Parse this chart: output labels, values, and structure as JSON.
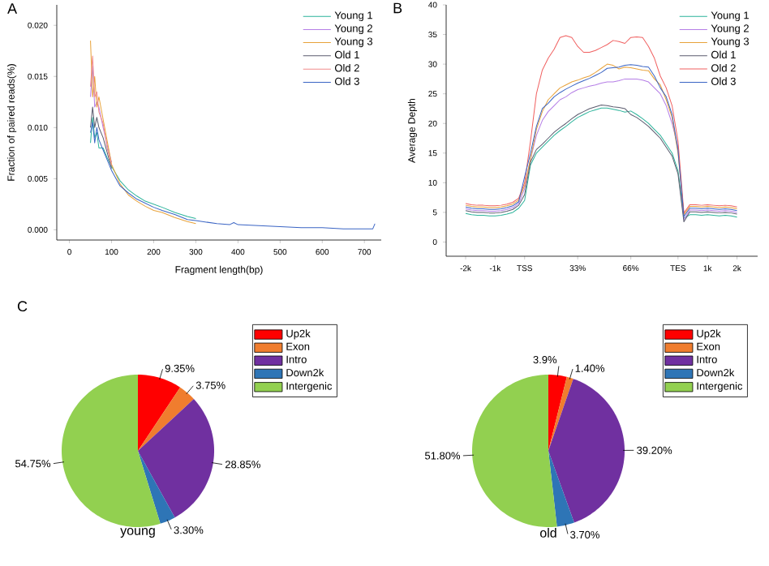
{
  "chart_data": [
    {
      "type": "line",
      "annotations": [
        "A"
      ],
      "xlabel": "Fragment length(bp)",
      "ylabel": "Fraction of paired reads(%)",
      "xlim": [
        -30,
        740
      ],
      "ylim": [
        -0.001,
        0.022
      ],
      "xticks": [
        0,
        100,
        200,
        300,
        400,
        500,
        600,
        700
      ],
      "yticks": [
        {
          "value": 0,
          "label": "0.000"
        },
        {
          "value": 0.005,
          "label": "0.005"
        },
        {
          "value": 0.01,
          "label": "0.010"
        },
        {
          "value": 0.015,
          "label": "0.015"
        },
        {
          "value": 0.02,
          "label": "0.020"
        }
      ],
      "legend": "top right",
      "x": [
        50,
        55,
        60,
        65,
        70,
        80,
        90,
        100,
        120,
        140,
        160,
        180,
        200,
        220,
        250,
        280,
        300,
        350,
        380,
        390,
        400,
        450,
        500,
        550,
        600,
        650,
        700,
        720,
        725
      ],
      "series": [
        {
          "name": "Young 1",
          "color": "#2bb39a",
          "values": [
            0.0085,
            0.011,
            0.009,
            0.0095,
            0.008,
            0.008,
            0.007,
            0.0062,
            0.0048,
            0.0039,
            0.0033,
            0.0028,
            0.0025,
            0.0022,
            0.0017,
            0.0013,
            0.0011,
            null,
            null,
            null,
            null,
            null,
            null,
            null,
            null,
            null,
            null,
            null,
            null
          ]
        },
        {
          "name": "Young 2",
          "color": "#b57ee6",
          "values": [
            0.013,
            0.016,
            0.012,
            0.0125,
            0.012,
            0.01,
            0.0082,
            0.0066,
            null,
            null,
            null,
            null,
            null,
            null,
            null,
            null,
            null,
            null,
            null,
            null,
            null,
            null,
            null,
            null,
            null,
            null,
            null,
            null,
            null
          ]
        },
        {
          "name": "Young 3",
          "color": "#e8a23a",
          "values": [
            0.0185,
            0.013,
            0.015,
            0.012,
            0.013,
            0.0108,
            0.0086,
            0.0064,
            0.0045,
            0.0034,
            0.0028,
            0.0023,
            0.0019,
            0.0017,
            0.0012,
            0.0008,
            0.0006,
            null,
            null,
            null,
            null,
            null,
            null,
            null,
            null,
            null,
            null,
            null,
            null
          ]
        },
        {
          "name": "Old 1",
          "color": "#5b5b6e",
          "values": [
            0.01,
            0.012,
            0.01,
            0.011,
            0.01,
            0.009,
            0.0075,
            0.006,
            null,
            null,
            null,
            null,
            null,
            null,
            null,
            null,
            null,
            null,
            null,
            null,
            null,
            null,
            null,
            null,
            null,
            null,
            null,
            null,
            null
          ]
        },
        {
          "name": "Old 2",
          "color": "#f08a8a",
          "values": [
            0.014,
            0.017,
            0.013,
            0.0135,
            0.0115,
            0.0104,
            0.0079,
            0.0063,
            null,
            null,
            null,
            null,
            null,
            null,
            null,
            null,
            null,
            null,
            null,
            null,
            null,
            null,
            null,
            null,
            null,
            null,
            null,
            null,
            null
          ]
        },
        {
          "name": "Old 3",
          "color": "#3a64c4",
          "values": [
            0.0095,
            0.0105,
            0.0085,
            0.01,
            0.0088,
            0.0078,
            0.0068,
            0.0058,
            0.0043,
            0.0036,
            0.003,
            0.0026,
            0.0022,
            0.0019,
            0.0015,
            0.001,
            0.0009,
            0.0006,
            0.0005,
            0.0007,
            0.0005,
            0.0004,
            0.0003,
            0.0002,
            0.0002,
            0.0001,
            0.0001,
            0.0001,
            0.0006
          ]
        }
      ]
    },
    {
      "type": "line",
      "annotations": [
        "B"
      ],
      "ylabel": "Average Depth",
      "ylim": [
        -2.4,
        40
      ],
      "categories": [
        "-2k",
        null,
        null,
        null,
        null,
        "-1k",
        null,
        null,
        null,
        null,
        "TSS",
        null,
        null,
        null,
        null,
        null,
        null,
        null,
        null,
        "33%",
        null,
        null,
        null,
        null,
        null,
        null,
        null,
        null,
        "66%",
        null,
        null,
        null,
        null,
        null,
        null,
        null,
        "TES",
        null,
        null,
        null,
        null,
        "1k",
        null,
        null,
        null,
        null,
        "2k"
      ],
      "yticks": [
        0,
        5,
        10,
        15,
        20,
        25,
        30,
        35,
        40
      ],
      "legend": "top right",
      "series": [
        {
          "name": "Young 1",
          "color": "#2bb39a",
          "values": [
            4.8,
            4.6,
            4.5,
            4.5,
            4.4,
            4.4,
            4.5,
            4.7,
            5.0,
            5.7,
            7,
            13,
            15,
            16,
            17,
            18,
            18.8,
            19.5,
            20.3,
            21,
            21.5,
            22,
            22.3,
            22.6,
            22.6,
            22.4,
            22.2,
            21.9,
            22.1,
            21.5,
            20.8,
            20,
            19,
            18,
            16.5,
            15,
            12,
            4.0,
            4.6,
            4.6,
            4.5,
            4.6,
            4.5,
            4.4,
            4.5,
            4.4,
            4.2
          ]
        },
        {
          "name": "Young 2",
          "color": "#b57ee6",
          "values": [
            5.6,
            5.4,
            5.3,
            5.3,
            5.2,
            5.2,
            5.3,
            5.5,
            5.8,
            6.5,
            9,
            14,
            18,
            20.5,
            22,
            23,
            24,
            24.5,
            25.2,
            25.7,
            26,
            26.3,
            26.5,
            26.8,
            27,
            27,
            27.2,
            27.5,
            27.5,
            27.5,
            27.3,
            27,
            26,
            25,
            23,
            20,
            16,
            3.8,
            5.4,
            5.4,
            5.3,
            5.4,
            5.3,
            5.2,
            5.3,
            5.2,
            5.0
          ]
        },
        {
          "name": "Young 3",
          "color": "#e8a23a",
          "values": [
            6.2,
            6.0,
            5.9,
            5.9,
            5.8,
            5.8,
            5.9,
            6.1,
            6.4,
            7.1,
            9.5,
            14,
            19,
            22,
            24,
            25,
            26,
            26.5,
            27,
            27.3,
            27.7,
            28,
            28.6,
            29.3,
            30,
            29.8,
            29.2,
            29.5,
            29.4,
            29.2,
            29,
            28.9,
            27.5,
            26.5,
            24,
            21,
            15,
            4.6,
            6.0,
            6.0,
            5.9,
            6.0,
            5.9,
            5.8,
            5.9,
            5.8,
            5.6
          ]
        },
        {
          "name": "Old 1",
          "color": "#5b5b6e",
          "values": [
            5.3,
            5.1,
            5.0,
            5.0,
            4.9,
            4.9,
            5.0,
            5.2,
            5.5,
            6.2,
            8,
            13.5,
            15.6,
            16.5,
            17.5,
            18.5,
            19.3,
            20,
            20.8,
            21.5,
            22,
            22.5,
            22.8,
            23.1,
            23,
            22.8,
            22.7,
            22.5,
            21.5,
            21,
            20.3,
            19.5,
            18.5,
            17.5,
            16,
            14.5,
            11.5,
            3.4,
            5.1,
            5.1,
            5.0,
            5.1,
            5.0,
            4.9,
            5.0,
            4.9,
            4.7
          ]
        },
        {
          "name": "Old 2",
          "color": "#f06060",
          "values": [
            6.5,
            6.3,
            6.2,
            6.2,
            6.1,
            6.1,
            6.2,
            6.4,
            6.7,
            7.4,
            10,
            17,
            25,
            29,
            31,
            32.5,
            34.5,
            34.8,
            34.5,
            33,
            32,
            32,
            32.3,
            32.8,
            33.3,
            34,
            33.8,
            33.5,
            34.5,
            34.6,
            34.5,
            33,
            31,
            28,
            26,
            23,
            17,
            4.9,
            6.3,
            6.3,
            6.2,
            6.3,
            6.2,
            6.1,
            6.2,
            6.1,
            5.9
          ]
        },
        {
          "name": "Old 3",
          "color": "#3a64c4",
          "values": [
            5.9,
            5.7,
            5.6,
            5.6,
            5.5,
            5.5,
            5.6,
            5.8,
            6.1,
            6.8,
            11,
            15,
            19.5,
            22.5,
            23.4,
            24.5,
            25.2,
            25.8,
            26.3,
            26.8,
            27.2,
            27.6,
            28.1,
            28.6,
            29.3,
            29.4,
            29.5,
            29.8,
            29.9,
            29.8,
            29.6,
            29.5,
            28,
            26,
            24.5,
            21.5,
            15.5,
            4.3,
            5.7,
            5.7,
            5.6,
            5.7,
            5.6,
            5.5,
            5.6,
            5.5,
            5.3
          ]
        }
      ]
    },
    {
      "type": "pie",
      "annotations": [
        "C"
      ],
      "title": "young",
      "legend": "right",
      "categories": [
        "Up2k",
        "Exon",
        "Intro",
        "Down2k",
        "Intergenic"
      ],
      "values": [
        9.35,
        3.75,
        28.85,
        3.3,
        54.75
      ],
      "value_labels": [
        "9.35%",
        "3.75%",
        "28.85%",
        "3.30%",
        "54.75%"
      ],
      "colors": [
        "#ff0000",
        "#f07d2e",
        "#7030a0",
        "#2e75b6",
        "#92d050"
      ]
    },
    {
      "type": "pie",
      "title": "old",
      "legend": "right",
      "categories": [
        "Up2k",
        "Exon",
        "Intro",
        "Down2k",
        "Intergenic"
      ],
      "values": [
        3.9,
        1.4,
        39.2,
        3.7,
        51.8
      ],
      "value_labels": [
        "3.9%",
        "1.40%",
        "39.20%",
        "3.70%",
        "51.80%"
      ],
      "colors": [
        "#ff0000",
        "#f07d2e",
        "#7030a0",
        "#2e75b6",
        "#92d050"
      ]
    }
  ]
}
